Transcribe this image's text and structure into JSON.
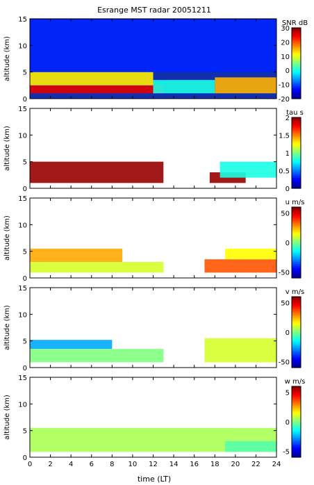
{
  "title": "Esrange MST radar 20051211",
  "x_axis": {
    "label": "time (LT)",
    "range": [
      0,
      24
    ],
    "ticks": [
      "0",
      "2",
      "4",
      "6",
      "8",
      "10",
      "12",
      "14",
      "16",
      "18",
      "20",
      "22",
      "24"
    ]
  },
  "chart_data": [
    {
      "type": "heatmap",
      "ylabel": "altitude (km)",
      "ylim": [
        0,
        15
      ],
      "yticks": [
        "0",
        "5",
        "10",
        "15"
      ],
      "colorbar": {
        "label": "SNR dB",
        "range": [
          -20,
          30
        ],
        "ticks": [
          "30",
          "20",
          "10",
          "0",
          "-10",
          "-20"
        ]
      },
      "layers": [
        {
          "t0": 0,
          "t1": 13,
          "h0": 1.0,
          "h1": 2.5,
          "value": 25
        },
        {
          "t0": 0,
          "t1": 12,
          "h0": 2.5,
          "h1": 5.0,
          "value": 12
        },
        {
          "t0": 12,
          "t1": 18,
          "h0": 1.0,
          "h1": 3.5,
          "value": 0
        },
        {
          "t0": 18,
          "t1": 24,
          "h0": 1.0,
          "h1": 4.0,
          "value": 15
        },
        {
          "t0": 0,
          "t1": 24,
          "h0": 5.0,
          "h1": 15.0,
          "value": -12
        }
      ]
    },
    {
      "type": "heatmap",
      "ylabel": "altitude (km)",
      "ylim": [
        0,
        15
      ],
      "yticks": [
        "0",
        "5",
        "10",
        "15"
      ],
      "colorbar": {
        "label": "tau s",
        "range": [
          0,
          2
        ],
        "ticks": [
          "2",
          "1.5",
          "1",
          "0.5",
          "0"
        ]
      },
      "layers": [
        {
          "t0": 0,
          "t1": 13,
          "h0": 1.0,
          "h1": 5.0,
          "value": 1.95
        },
        {
          "t0": 17.5,
          "t1": 21,
          "h0": 1.0,
          "h1": 3.0,
          "value": 1.95
        },
        {
          "t0": 18.5,
          "t1": 24,
          "h0": 2.0,
          "h1": 5.0,
          "value": 0.8
        }
      ]
    },
    {
      "type": "heatmap",
      "ylabel": "altitude (km)",
      "ylim": [
        0,
        15
      ],
      "yticks": [
        "0",
        "5",
        "10",
        "15"
      ],
      "colorbar": {
        "label": "u m/s",
        "range": [
          -60,
          60
        ],
        "ticks": [
          "50",
          "0",
          "-50"
        ]
      },
      "layers": [
        {
          "t0": 0,
          "t1": 9,
          "h0": 3.0,
          "h1": 5.5,
          "value": 25
        },
        {
          "t0": 0,
          "t1": 13,
          "h0": 1.0,
          "h1": 3.0,
          "value": 10
        },
        {
          "t0": 17,
          "t1": 24,
          "h0": 1.0,
          "h1": 3.5,
          "value": 35
        },
        {
          "t0": 19,
          "t1": 24,
          "h0": 3.5,
          "h1": 5.5,
          "value": 15
        }
      ]
    },
    {
      "type": "heatmap",
      "ylabel": "altitude (km)",
      "ylim": [
        0,
        15
      ],
      "yticks": [
        "0",
        "5",
        "10",
        "15"
      ],
      "colorbar": {
        "label": "v m/s",
        "range": [
          -60,
          60
        ],
        "ticks": [
          "50",
          "0",
          "-50"
        ]
      },
      "layers": [
        {
          "t0": 0,
          "t1": 8,
          "h0": 3.5,
          "h1": 5.2,
          "value": -25
        },
        {
          "t0": 0,
          "t1": 13,
          "h0": 1.0,
          "h1": 3.5,
          "value": 0
        },
        {
          "t0": 17,
          "t1": 24,
          "h0": 1.0,
          "h1": 5.5,
          "value": 10
        }
      ]
    },
    {
      "type": "heatmap",
      "ylabel": "altitude (km)",
      "ylim": [
        0,
        15
      ],
      "yticks": [
        "0",
        "5",
        "10",
        "15"
      ],
      "colorbar": {
        "label": "w m/s",
        "range": [
          -6,
          6
        ],
        "ticks": [
          "5",
          "0",
          "-5"
        ]
      },
      "layers": [
        {
          "t0": 0,
          "t1": 24,
          "h0": 1.0,
          "h1": 5.5,
          "value": 0.5
        },
        {
          "t0": 19,
          "t1": 24,
          "h0": 1.0,
          "h1": 3.0,
          "value": -0.5
        }
      ]
    }
  ],
  "colors": {
    "colormap": [
      "#00008f",
      "#0000ff",
      "#0080ff",
      "#00ffff",
      "#80ff80",
      "#ffff00",
      "#ff8000",
      "#ff0000",
      "#800000"
    ],
    "frame": "#000000",
    "snr_background": "#1030b0"
  }
}
